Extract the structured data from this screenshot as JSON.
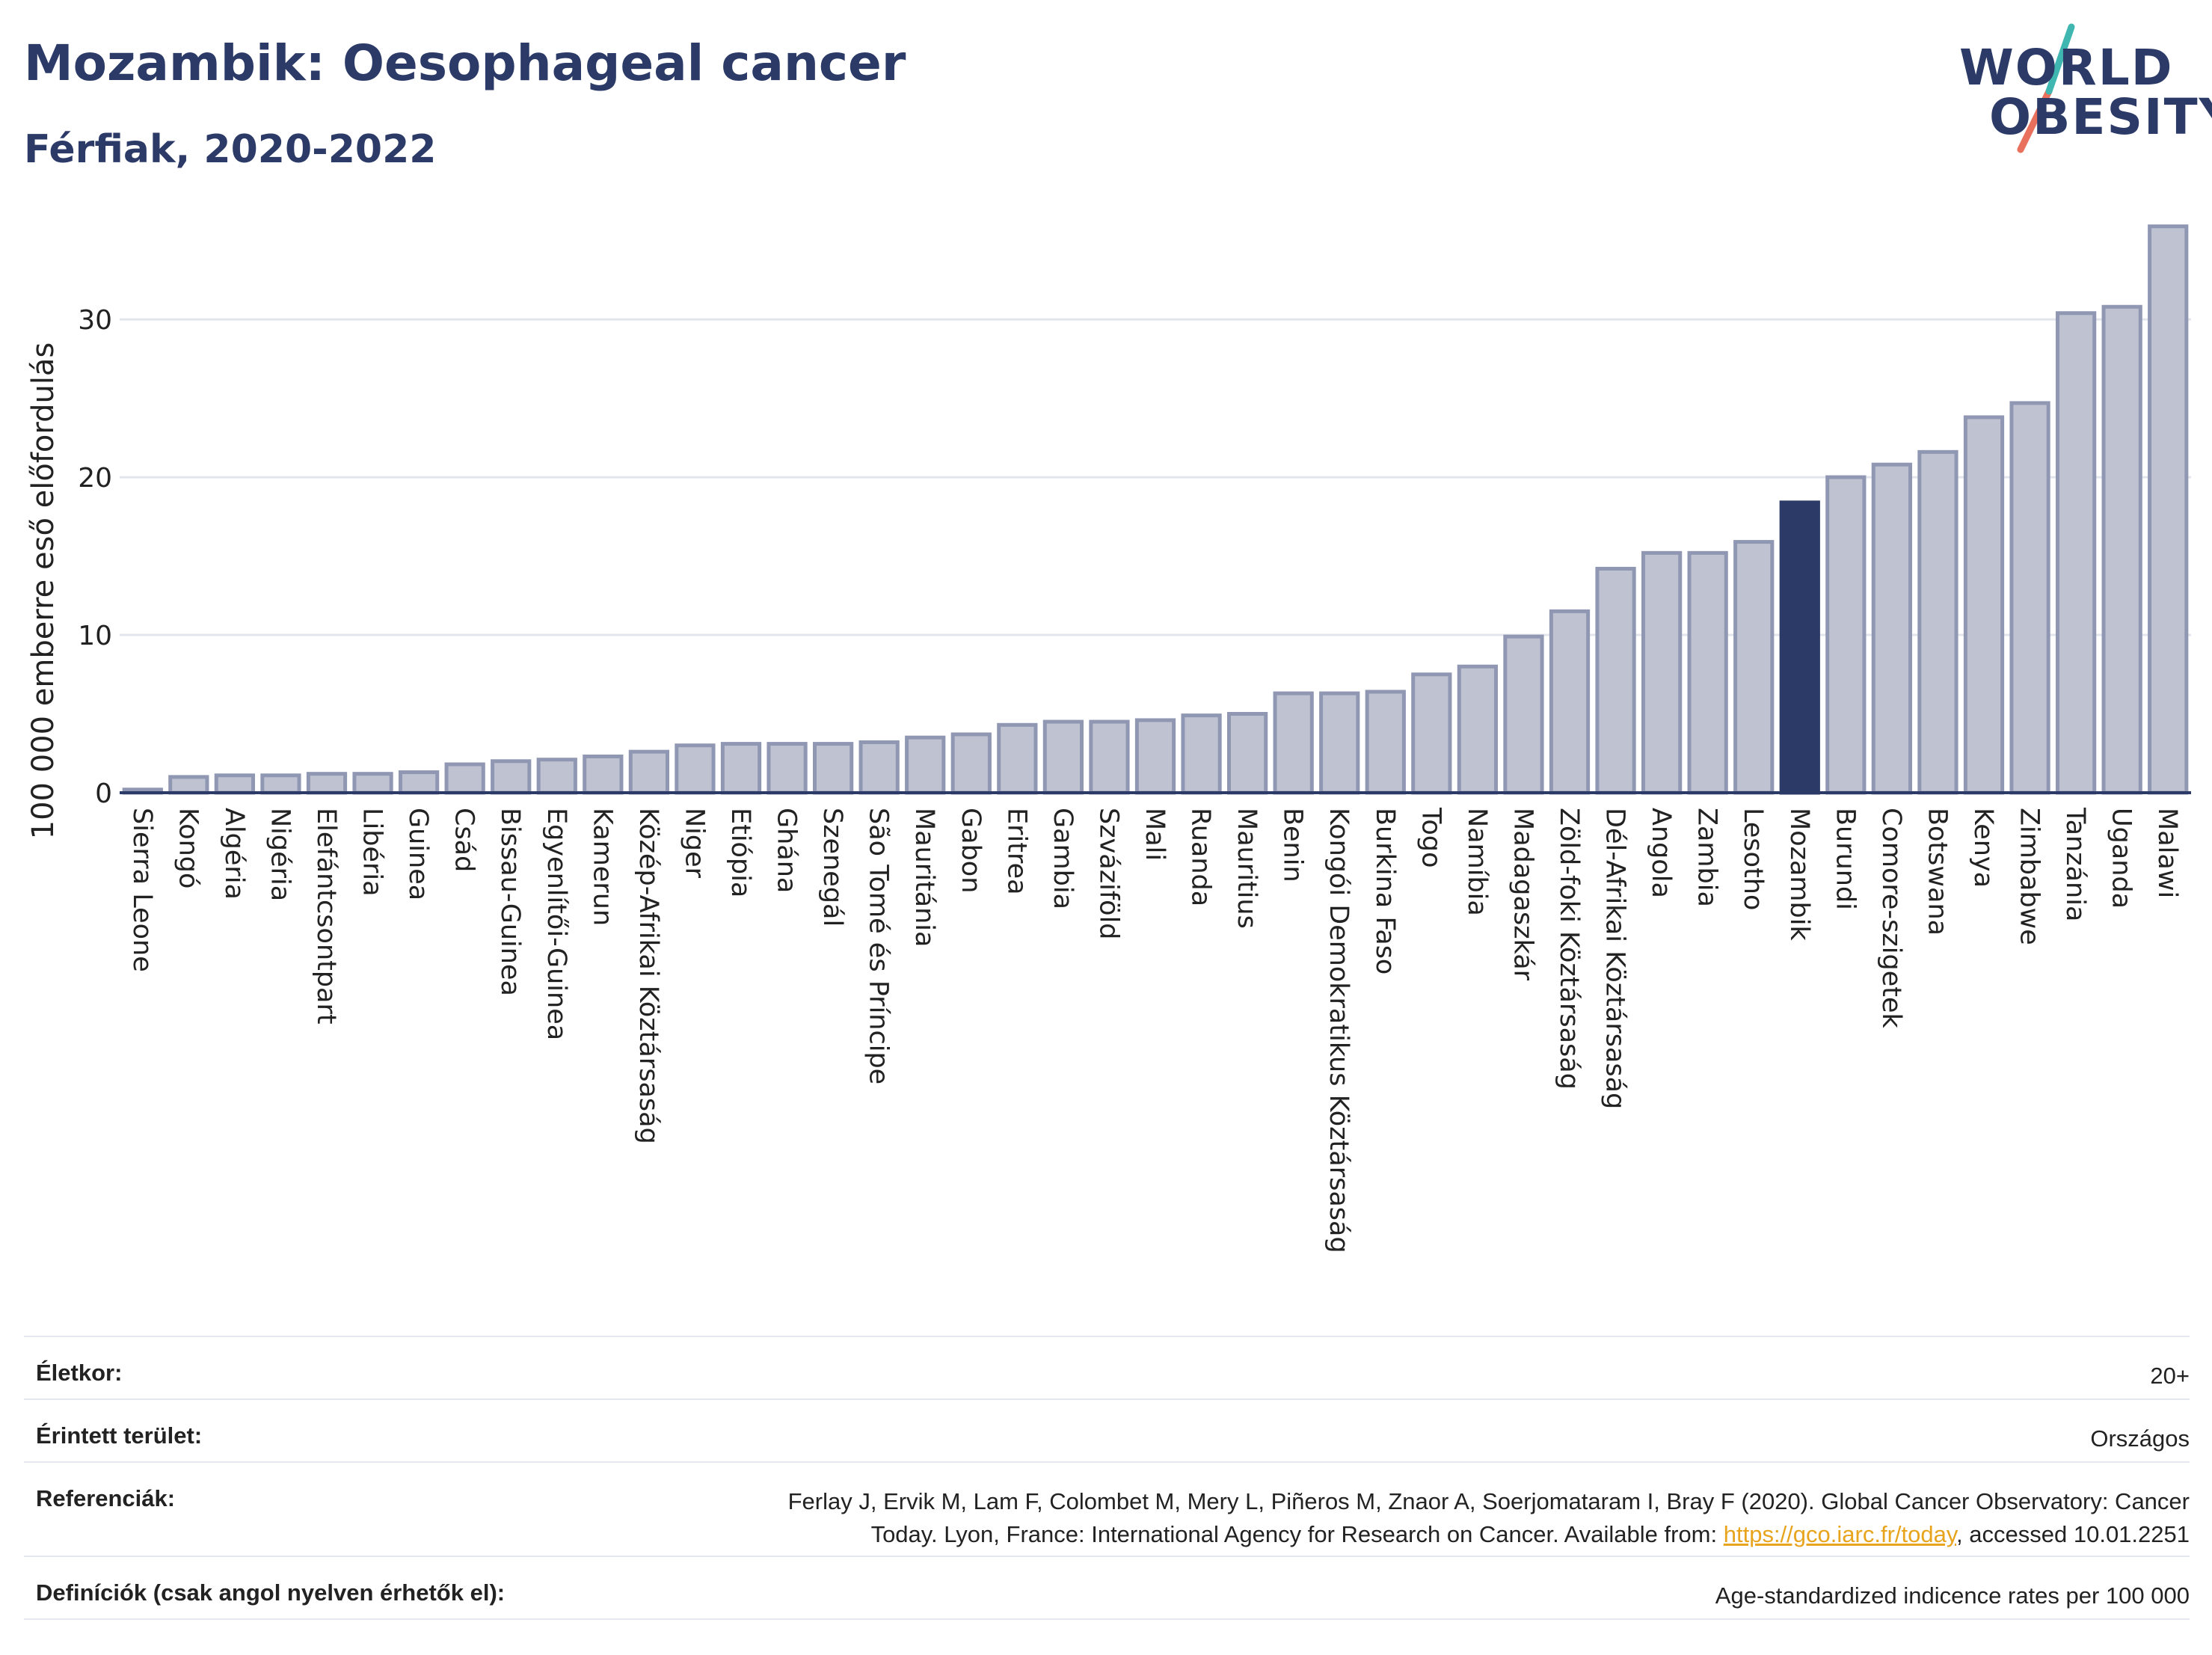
{
  "header": {
    "title": "Mozambik: Oesophageal cancer",
    "subtitle": "Férfiak, 2020-2022",
    "logo_line1": "WORLD",
    "logo_line2": "OBESITY"
  },
  "chart_data": {
    "type": "bar",
    "ylabel": "100 000 emberre eső előfordulás",
    "ylim": [
      0,
      36.5
    ],
    "yticks": [
      0,
      10,
      20,
      30
    ],
    "grid": true,
    "highlight": "Mozambik",
    "colors": {
      "bar": "#bfc3d1",
      "bar_border": "#9097b3",
      "highlight": "#2b3a67",
      "grid": "#e3e5ec",
      "axis": "#2b3a67"
    },
    "categories": [
      "Sierra Leone",
      "Kongó",
      "Algéria",
      "Nigéria",
      "Elefántcsontpart",
      "Libéria",
      "Guinea",
      "Csád",
      "Bissau-Guinea",
      "Egyenlítői-Guinea",
      "Kamerun",
      "Közép-Afrikai Köztársaság",
      "Niger",
      "Etiópia",
      "Ghána",
      "Szenegál",
      "São Tomé és Príncipe",
      "Mauritánia",
      "Gabon",
      "Eritrea",
      "Gambia",
      "Szváziföld",
      "Mali",
      "Ruanda",
      "Mauritius",
      "Benin",
      "Kongói Demokratikus Köztársaság",
      "Burkina Faso",
      "Togo",
      "Namíbia",
      "Madagaszkár",
      "Zöld-foki Köztársaság",
      "Dél-Afrikai Köztársaság",
      "Angola",
      "Zambia",
      "Lesotho",
      "Mozambik",
      "Burundi",
      "Comore-szigetek",
      "Botswana",
      "Kenya",
      "Zimbabwe",
      "Tanzánia",
      "Uganda",
      "Malawi"
    ],
    "values": [
      0.2,
      1.0,
      1.1,
      1.1,
      1.2,
      1.2,
      1.3,
      1.8,
      2.0,
      2.1,
      2.3,
      2.6,
      3.0,
      3.1,
      3.1,
      3.1,
      3.2,
      3.5,
      3.7,
      4.3,
      4.5,
      4.5,
      4.6,
      4.9,
      5.0,
      6.3,
      6.3,
      6.4,
      7.5,
      8.0,
      9.9,
      11.5,
      14.2,
      15.2,
      15.2,
      15.9,
      18.4,
      20.0,
      20.8,
      21.6,
      23.8,
      24.7,
      30.4,
      30.8,
      35.9
    ]
  },
  "info": [
    {
      "key": "Életkor:",
      "value": "20+"
    },
    {
      "key": "Érintett terület:",
      "value": "Országos"
    },
    {
      "key": "Referenciák:",
      "value_line1": "Ferlay J, Ervik M, Lam F, Colombet M, Mery L, Piñeros M, Znaor A, Soerjomataram I, Bray F (2020). Global Cancer Observatory: Cancer",
      "value_line2_pre": "Today. Lyon, France: International Agency for Research on Cancer. Available from: ",
      "link": "https://gco.iarc.fr/today",
      "value_line2_post": ", accessed 10.01.2251"
    },
    {
      "key": "Definíciók (csak angol nyelven érhetők el):",
      "value": "Age-standardized indicence rates per 100 000"
    }
  ]
}
